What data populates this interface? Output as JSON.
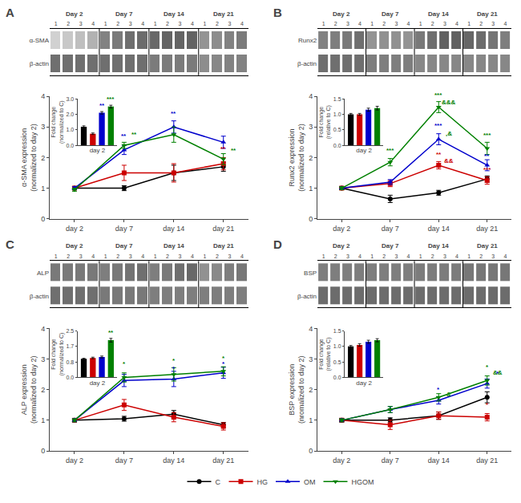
{
  "chart_data": [
    {
      "type": "line",
      "title": "A",
      "ylabel": "α-SMA expression\n(normalized to day 2)",
      "categories": [
        "day 2",
        "day 7",
        "day 14",
        "day 21"
      ],
      "series": [
        {
          "name": "C",
          "color": "#000000",
          "marker": "circle",
          "values": [
            1.0,
            1.0,
            1.5,
            1.7
          ],
          "errors": [
            0.05,
            0.08,
            0.25,
            0.15
          ]
        },
        {
          "name": "HG",
          "color": "#cc0000",
          "marker": "square",
          "values": [
            1.0,
            1.5,
            1.5,
            1.8
          ],
          "errors": [
            0.05,
            0.25,
            0.3,
            0.2
          ]
        },
        {
          "name": "OM",
          "color": "#0000cc",
          "marker": "triangle-up",
          "values": [
            1.0,
            2.25,
            3.0,
            2.5
          ],
          "errors": [
            0.05,
            0.15,
            0.2,
            0.2
          ]
        },
        {
          "name": "HGOM",
          "color": "#008000",
          "marker": "triangle-down",
          "values": [
            0.95,
            2.4,
            2.75,
            1.95
          ],
          "errors": [
            0.05,
            0.1,
            0.25,
            0.18
          ]
        }
      ],
      "ylim": [
        0,
        4
      ],
      "yticks": [
        0,
        1,
        2,
        3,
        4
      ],
      "grid": false,
      "legend": "bottom",
      "annotations": [
        {
          "x": "day 7",
          "y": 2.58,
          "text": "**",
          "color": "#0000cc"
        },
        {
          "x": "day 7",
          "y": 2.65,
          "text": "**",
          "color": "#008000"
        },
        {
          "x": "day 14",
          "y": 3.32,
          "text": "**",
          "color": "#0000cc"
        },
        {
          "x": "day 21",
          "y": 2.18,
          "text": "**",
          "color": "#cc0000"
        },
        {
          "x": "day 21",
          "y": 2.12,
          "text": "**",
          "color": "#008000"
        }
      ],
      "inset": {
        "type": "bar",
        "xlabel": "day 2",
        "ylabel": "Fold change\n(normalized to C)",
        "categories": [
          null,
          null,
          null,
          null
        ],
        "values": [
          1.2,
          0.75,
          2.1,
          2.5
        ],
        "errors": [
          0.06,
          0.05,
          0.08,
          0.09
        ],
        "colors": [
          "#000000",
          "#cc0000",
          "#0000cc",
          "#008000"
        ],
        "ylim": [
          0,
          3
        ],
        "yticks": [
          {
            "value": 0,
            "label": "0.0"
          },
          {
            "value": 1,
            "label": "1.0"
          },
          {
            "value": 2,
            "label": "2.0"
          },
          {
            "value": 3,
            "label": "3.0"
          }
        ],
        "annotations": [
          {
            "index": 2,
            "text": "**",
            "color": "#0000cc"
          },
          {
            "index": 3,
            "text": "***",
            "color": "#008000"
          }
        ]
      },
      "blot": {
        "type": "heatmap",
        "rows": [
          "α-SMA",
          "β-actin"
        ],
        "groups": [
          "Day 2",
          "Day 7",
          "Day 14",
          "Day 21"
        ],
        "lanes": [
          "1",
          "2",
          "3",
          "4"
        ],
        "values": [
          [
            0.25,
            0.3,
            0.35,
            0.42,
            0.68,
            0.72,
            0.78,
            0.8,
            0.82,
            0.84,
            0.84,
            0.85,
            0.58,
            0.62,
            0.68,
            0.72
          ],
          [
            0.78,
            0.78,
            0.78,
            0.78,
            0.78,
            0.78,
            0.78,
            0.78,
            0.72,
            0.72,
            0.72,
            0.72,
            0.62,
            0.65,
            0.68,
            0.68
          ]
        ],
        "zlim": [
          0,
          1
        ]
      }
    },
    {
      "type": "line",
      "title": "B",
      "ylabel": "Runx2 expression\n(normalized to day 2)",
      "categories": [
        "day 2",
        "day 7",
        "day 14",
        "day 21"
      ],
      "series": [
        {
          "name": "C",
          "color": "#000000",
          "marker": "circle",
          "values": [
            1.0,
            0.65,
            0.85,
            1.3
          ],
          "errors": [
            0.05,
            0.12,
            0.08,
            0.1
          ]
        },
        {
          "name": "HG",
          "color": "#cc0000",
          "marker": "square",
          "values": [
            1.0,
            1.15,
            1.75,
            1.25
          ],
          "errors": [
            0.05,
            0.1,
            0.12,
            0.12
          ]
        },
        {
          "name": "OM",
          "color": "#0000cc",
          "marker": "triangle-up",
          "values": [
            1.0,
            1.2,
            2.6,
            1.75
          ],
          "errors": [
            0.05,
            0.08,
            0.18,
            0.18
          ]
        },
        {
          "name": "HGOM",
          "color": "#008000",
          "marker": "triangle-down",
          "values": [
            1.0,
            1.85,
            3.65,
            2.3
          ],
          "errors": [
            0.05,
            0.12,
            0.18,
            0.2
          ]
        }
      ],
      "ylim": [
        0,
        4
      ],
      "yticks": [
        0,
        1,
        2,
        3,
        4
      ],
      "grid": false,
      "legend": "bottom",
      "annotations": [
        {
          "x": "day 7",
          "y": 2.12,
          "text": "***",
          "color": "#008000"
        },
        {
          "x": "day 14",
          "y": 3.92,
          "text": "***",
          "color": "#008000"
        },
        {
          "x": "day 14",
          "y": 3.68,
          "text": "&&&",
          "color": "#008000"
        },
        {
          "x": "day 14",
          "y": 2.92,
          "text": "***",
          "color": "#0000cc"
        },
        {
          "x": "day 14",
          "y": 2.68,
          "text": ",&",
          "color": "#008000"
        },
        {
          "x": "day 14",
          "y": 1.98,
          "text": "**",
          "color": "#cc0000"
        },
        {
          "x": "day 14",
          "y": 1.78,
          "text": "&&",
          "color": "#cc0000"
        },
        {
          "x": "day 21",
          "y": 2.62,
          "text": "***",
          "color": "#008000"
        },
        {
          "x": "day 21",
          "y": 1.92,
          "text": "**",
          "color": "#0000cc"
        },
        {
          "x": "day 21",
          "y": 1.48,
          "text": "***",
          "color": "#cc0000"
        }
      ],
      "inset": {
        "type": "bar",
        "xlabel": "day 2",
        "ylabel": "Fold change\n(relative to C)",
        "categories": [
          null,
          null,
          null,
          null
        ],
        "values": [
          1.0,
          1.0,
          1.15,
          1.2
        ],
        "errors": [
          0.03,
          0.03,
          0.05,
          0.06
        ],
        "colors": [
          "#000000",
          "#cc0000",
          "#0000cc",
          "#008000"
        ],
        "ylim": [
          0.0,
          1.5
        ],
        "yticks": [
          {
            "value": 0,
            "label": "0.0"
          },
          {
            "value": 0.5,
            "label": "0.5"
          },
          {
            "value": 1,
            "label": "1.0"
          },
          {
            "value": 1.5,
            "label": "1.5"
          }
        ],
        "annotations": []
      },
      "blot": {
        "type": "heatmap",
        "rows": [
          "Runx2",
          "β-actin"
        ],
        "groups": [
          "Day 2",
          "Day 7",
          "Day 14",
          "Day 21"
        ],
        "lanes": [
          "1",
          "2",
          "3",
          "4"
        ],
        "values": [
          [
            0.68,
            0.7,
            0.73,
            0.78,
            0.58,
            0.6,
            0.6,
            0.58,
            0.73,
            0.78,
            0.86,
            0.86,
            0.83,
            0.8,
            0.75,
            0.7
          ],
          [
            0.78,
            0.78,
            0.78,
            0.78,
            0.7,
            0.7,
            0.7,
            0.7,
            0.65,
            0.65,
            0.65,
            0.65,
            0.65,
            0.65,
            0.65,
            0.65
          ]
        ],
        "zlim": [
          0,
          1
        ]
      }
    },
    {
      "type": "line",
      "title": "C",
      "ylabel": "ALP expression\n(normalized to day 2)",
      "categories": [
        "day 2",
        "day 7",
        "day 14",
        "day 21"
      ],
      "series": [
        {
          "name": "C",
          "color": "#000000",
          "marker": "circle",
          "values": [
            1.0,
            1.05,
            1.2,
            0.85
          ],
          "errors": [
            0.05,
            0.08,
            0.12,
            0.08
          ]
        },
        {
          "name": "HG",
          "color": "#cc0000",
          "marker": "square",
          "values": [
            1.0,
            1.5,
            1.1,
            0.8
          ],
          "errors": [
            0.05,
            0.18,
            0.15,
            0.12
          ]
        },
        {
          "name": "OM",
          "color": "#0000cc",
          "marker": "triangle-up",
          "values": [
            1.0,
            2.3,
            2.35,
            2.55
          ],
          "errors": [
            0.05,
            0.2,
            0.25,
            0.18
          ]
        },
        {
          "name": "HGOM",
          "color": "#008000",
          "marker": "triangle-down",
          "values": [
            1.0,
            2.4,
            2.5,
            2.6
          ],
          "errors": [
            0.05,
            0.15,
            0.22,
            0.15
          ]
        }
      ],
      "ylim": [
        0,
        4
      ],
      "yticks": [
        0,
        1,
        2,
        3,
        4
      ],
      "grid": false,
      "legend": "bottom",
      "annotations": [
        {
          "x": "day 7",
          "y": 2.72,
          "text": "*",
          "color": "#008000"
        },
        {
          "x": "day 14",
          "y": 2.82,
          "text": "*",
          "color": "#008000"
        },
        {
          "x": "day 14",
          "y": 2.58,
          "text": "*",
          "color": "#0000cc"
        },
        {
          "x": "day 21",
          "y": 2.92,
          "text": "*",
          "color": "#008000"
        },
        {
          "x": "day 21",
          "y": 2.72,
          "text": "*",
          "color": "#0000cc"
        }
      ],
      "inset": {
        "type": "bar",
        "xlabel": "day 2",
        "ylabel": "Fold change\n(normalized to C)",
        "categories": [
          null,
          null,
          null,
          null
        ],
        "values": [
          1.0,
          1.05,
          1.1,
          2.0
        ],
        "errors": [
          0.03,
          0.04,
          0.05,
          0.1
        ],
        "colors": [
          "#000000",
          "#cc0000",
          "#0000cc",
          "#008000"
        ],
        "ylim": [
          0,
          2.5
        ],
        "yticks": [
          {
            "value": 0,
            "label": "0.0"
          },
          {
            "value": 0.8333333333333334,
            "label": "0.8"
          },
          {
            "value": 1.6666666666666667,
            "label": "1.7"
          },
          {
            "value": 2.5,
            "label": "2.5"
          }
        ],
        "annotations": [
          {
            "index": 3,
            "text": "**",
            "color": "#008000"
          }
        ]
      },
      "blot": {
        "type": "heatmap",
        "rows": [
          "ALP",
          "β-actin"
        ],
        "groups": [
          "Day 2",
          "Day 7",
          "Day 14",
          "Day 21"
        ],
        "lanes": [
          "1",
          "2",
          "3",
          "4"
        ],
        "values": [
          [
            0.73,
            0.73,
            0.73,
            0.73,
            0.7,
            0.73,
            0.76,
            0.78,
            0.7,
            0.73,
            0.78,
            0.82,
            0.6,
            0.64,
            0.7,
            0.74
          ],
          [
            0.78,
            0.78,
            0.78,
            0.78,
            0.73,
            0.73,
            0.73,
            0.73,
            0.7,
            0.7,
            0.7,
            0.7,
            0.7,
            0.7,
            0.7,
            0.7
          ]
        ],
        "zlim": [
          0,
          1
        ]
      }
    },
    {
      "type": "line",
      "title": "D",
      "ylabel": "BSP expression\n(nromalized to day 2)",
      "categories": [
        "day 2",
        "day 7",
        "day 14",
        "day 21"
      ],
      "series": [
        {
          "name": "C",
          "color": "#000000",
          "marker": "circle",
          "values": [
            1.0,
            1.0,
            1.15,
            1.75
          ],
          "errors": [
            0.05,
            0.08,
            0.12,
            0.18
          ]
        },
        {
          "name": "HG",
          "color": "#cc0000",
          "marker": "square",
          "values": [
            1.0,
            0.85,
            1.15,
            1.1
          ],
          "errors": [
            0.05,
            0.15,
            0.12,
            0.12
          ]
        },
        {
          "name": "OM",
          "color": "#0000cc",
          "marker": "triangle-up",
          "values": [
            1.0,
            1.35,
            1.65,
            2.2
          ],
          "errors": [
            0.05,
            0.1,
            0.12,
            0.15
          ]
        },
        {
          "name": "HGOM",
          "color": "#008000",
          "marker": "triangle-down",
          "values": [
            1.0,
            1.35,
            1.75,
            2.3
          ],
          "errors": [
            0.05,
            0.1,
            0.12,
            0.15
          ]
        }
      ],
      "ylim": [
        0,
        4
      ],
      "yticks": [
        0,
        1,
        2,
        3,
        4
      ],
      "grid": false,
      "legend": "bottom",
      "annotations": [
        {
          "x": "day 14",
          "y": 1.9,
          "text": "*",
          "color": "#0000cc"
        },
        {
          "x": "day 14",
          "y": 1.72,
          "text": "&",
          "color": "#008000"
        },
        {
          "x": "day 21",
          "y": 2.62,
          "text": "*",
          "color": "#008000"
        },
        {
          "x": "day 21",
          "y": 2.45,
          "text": "&&",
          "color": "#008000"
        },
        {
          "x": "day 21",
          "y": 2.42,
          "text": "*",
          "color": "#0000cc"
        },
        {
          "x": "day 21",
          "y": 1.38,
          "text": "*",
          "color": "#cc0000"
        }
      ],
      "inset": {
        "type": "bar",
        "xlabel": "day 2",
        "ylabel": "Fold change\n(relative to C)",
        "categories": [
          null,
          null,
          null,
          null
        ],
        "values": [
          1.0,
          1.05,
          1.15,
          1.2
        ],
        "errors": [
          0.03,
          0.04,
          0.05,
          0.05
        ],
        "colors": [
          "#000000",
          "#cc0000",
          "#0000cc",
          "#008000"
        ],
        "ylim": [
          0,
          1.5
        ],
        "yticks": [
          {
            "value": 0,
            "label": "0.0"
          },
          {
            "value": 0.5,
            "label": "0.5"
          },
          {
            "value": 1,
            "label": "1.0"
          },
          {
            "value": 1.5,
            "label": "1.5"
          }
        ],
        "annotations": []
      },
      "blot": {
        "type": "heatmap",
        "rows": [
          "BSP",
          "β-actin"
        ],
        "groups": [
          "Day 2",
          "Day 7",
          "Day 14",
          "Day 21"
        ],
        "lanes": [
          "1",
          "2",
          "3",
          "4"
        ],
        "values": [
          [
            0.7,
            0.7,
            0.7,
            0.7,
            0.7,
            0.7,
            0.7,
            0.7,
            0.71,
            0.71,
            0.71,
            0.71,
            0.74,
            0.74,
            0.74,
            0.74
          ],
          [
            0.8,
            0.8,
            0.8,
            0.8,
            0.8,
            0.8,
            0.8,
            0.8,
            0.8,
            0.8,
            0.8,
            0.8,
            0.8,
            0.8,
            0.8,
            0.8
          ]
        ],
        "zlim": [
          0,
          1
        ]
      }
    }
  ]
}
